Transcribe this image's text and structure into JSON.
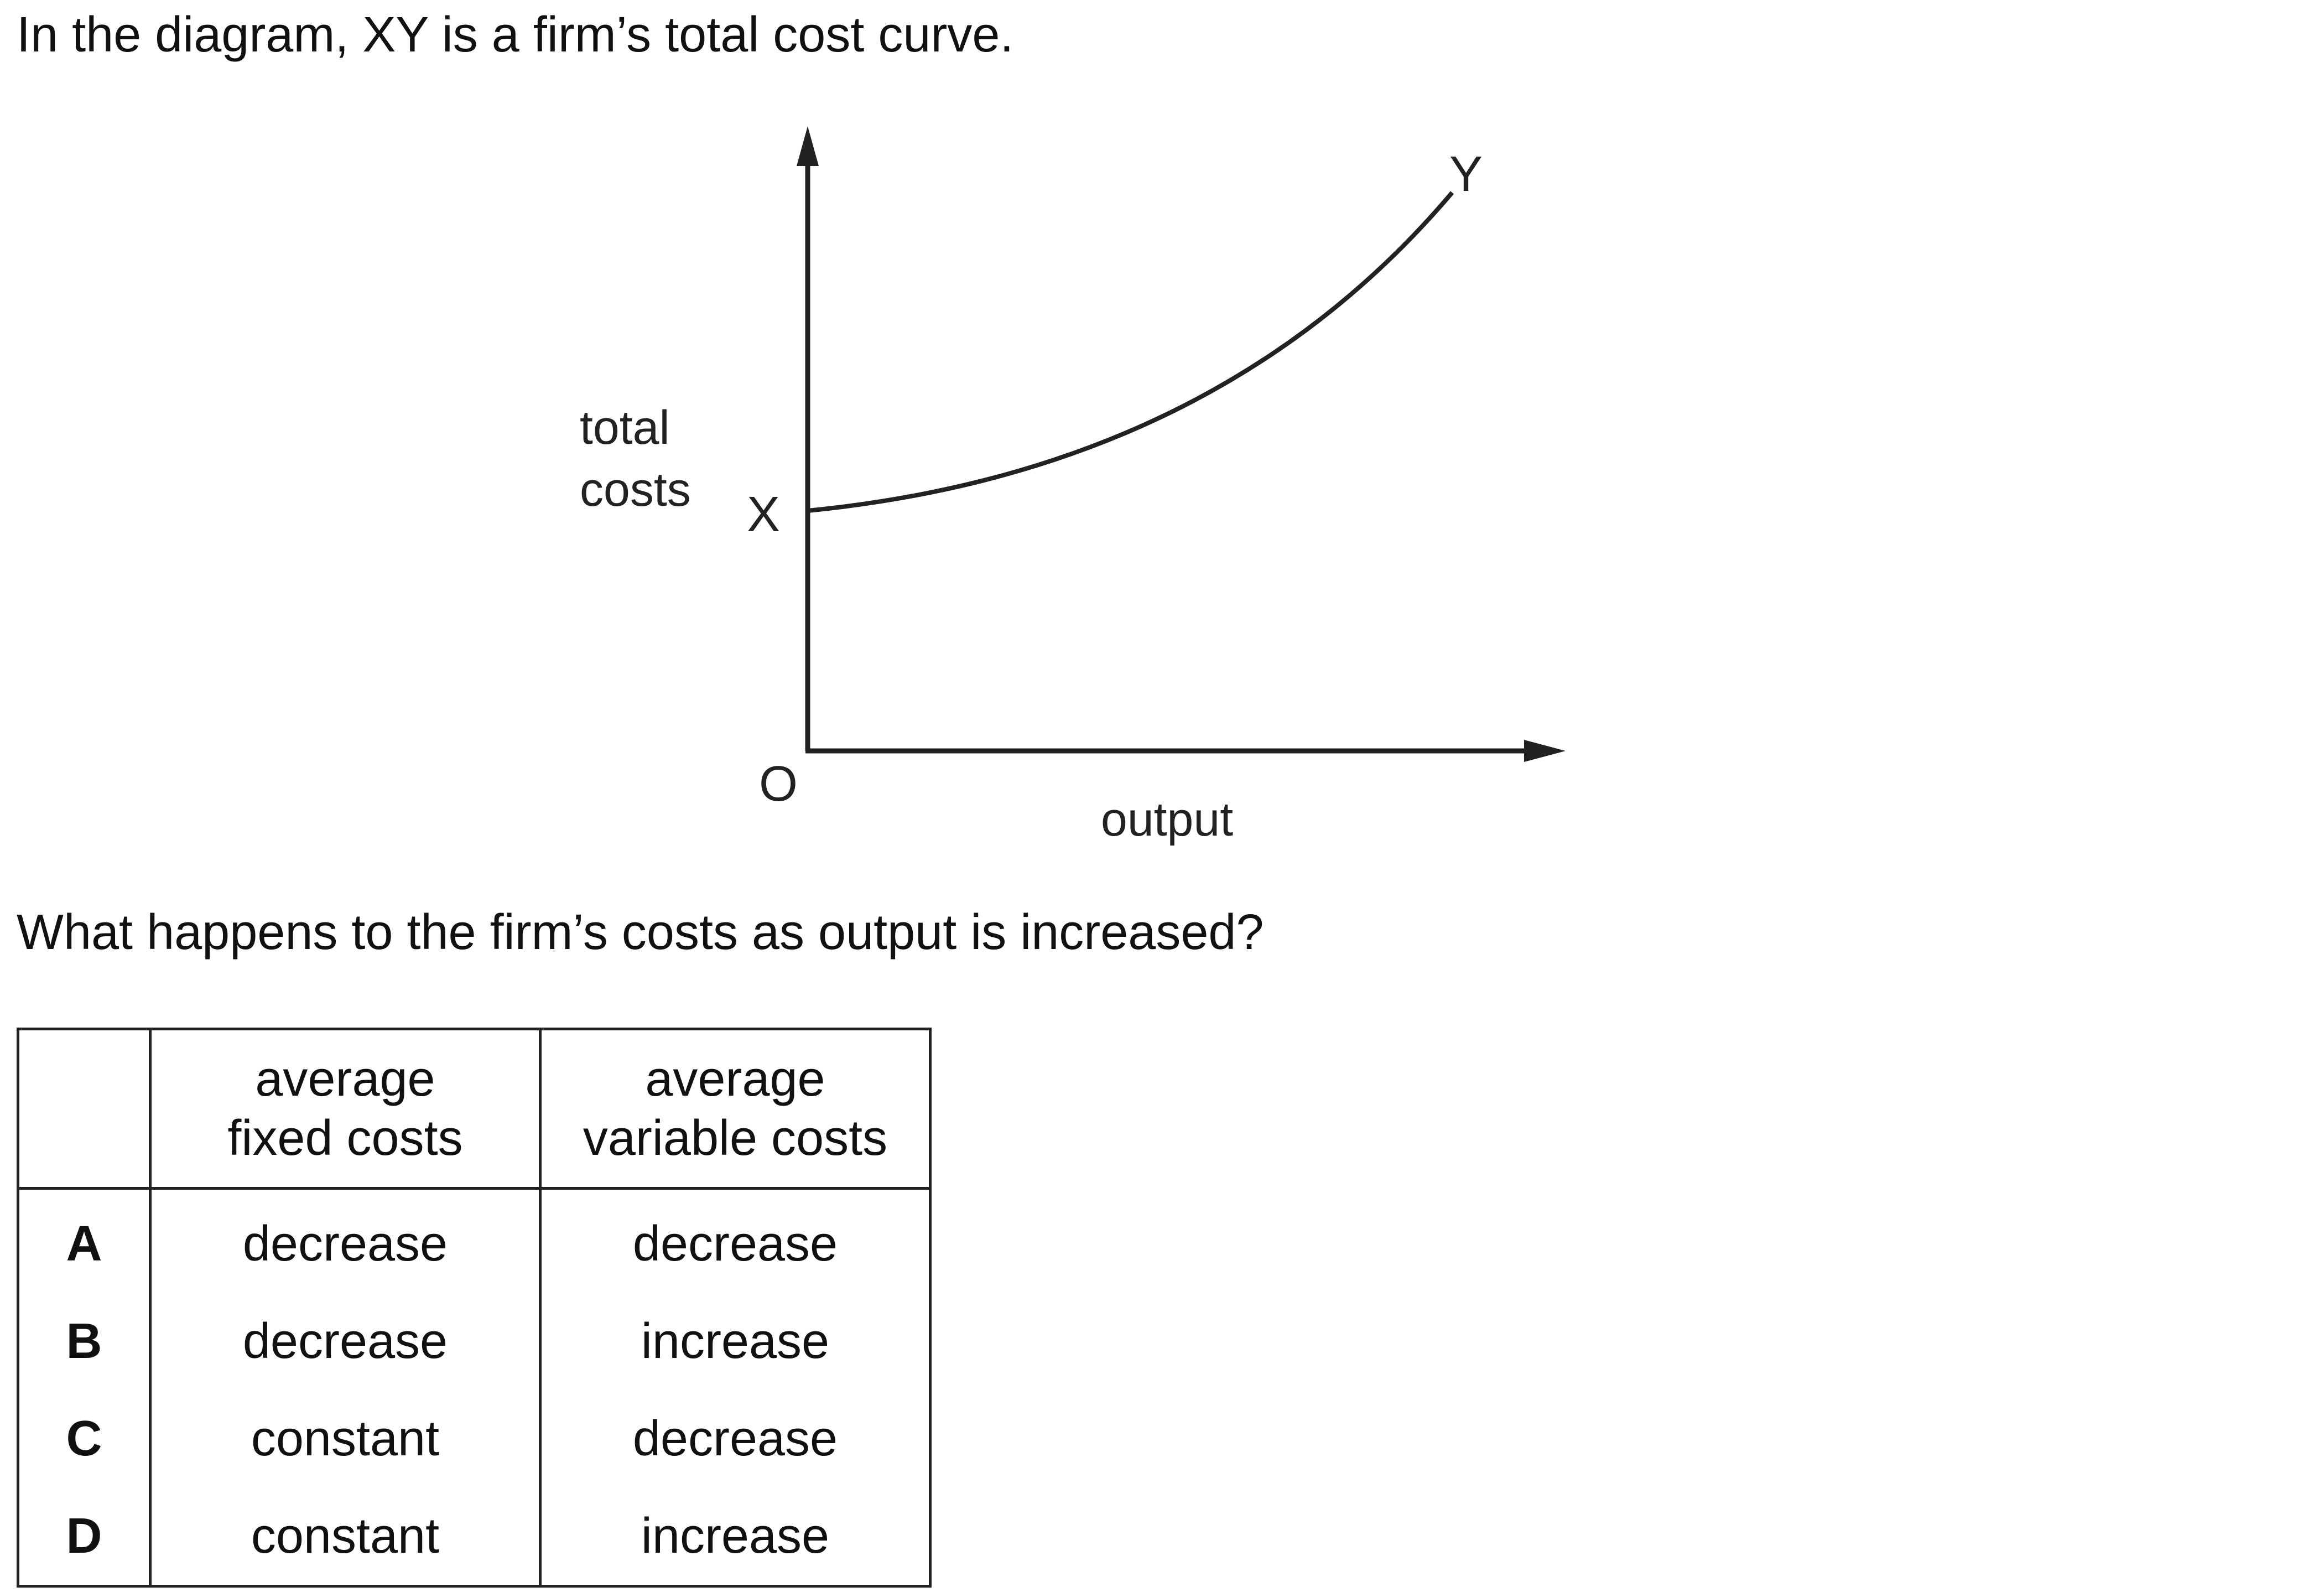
{
  "intro_text": "In the diagram, XY is a firm’s total cost curve.",
  "diagram": {
    "y_axis_label_line1": "total",
    "y_axis_label_line2": "costs",
    "x_axis_label": "output",
    "origin_label": "O",
    "point_x_label": "X",
    "point_y_label": "Y"
  },
  "question_text": "What happens to the firm’s costs as output is increased?",
  "table": {
    "headers": {
      "letter": "",
      "col1_line1": "average",
      "col1_line2": "fixed costs",
      "col2_line1": "average",
      "col2_line2": "variable costs"
    },
    "rows": [
      {
        "letter": "A",
        "afc": "decrease",
        "avc": "decrease"
      },
      {
        "letter": "B",
        "afc": "decrease",
        "avc": "increase"
      },
      {
        "letter": "C",
        "afc": "constant",
        "avc": "decrease"
      },
      {
        "letter": "D",
        "afc": "constant",
        "avc": "increase"
      }
    ]
  }
}
